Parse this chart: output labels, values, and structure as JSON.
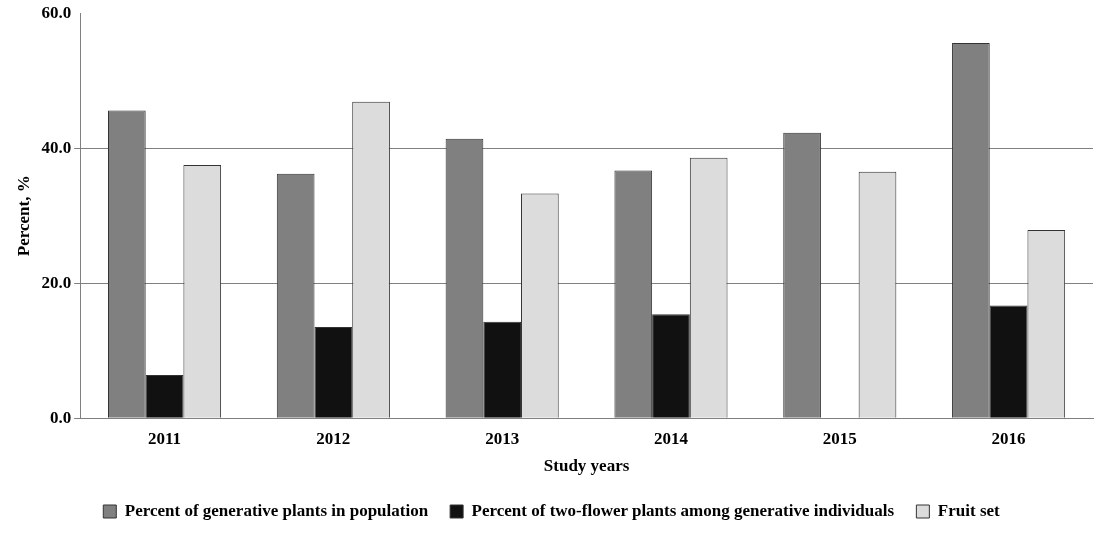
{
  "chart_data": {
    "type": "bar",
    "xlabel": "Study years",
    "ylabel": "Percent, %",
    "categories": [
      "2011",
      "2012",
      "2013",
      "2014",
      "2015",
      "2016"
    ],
    "series": [
      {
        "name": "Percent of generative plants in population",
        "color": "#808080",
        "values": [
          45.6,
          36.2,
          41.4,
          36.7,
          42.3,
          55.6
        ]
      },
      {
        "name": "Percent of two-flower plants among generative individuals",
        "color": "#111111",
        "values": [
          6.4,
          13.5,
          14.3,
          15.4,
          null,
          16.7
        ]
      },
      {
        "name": "Fruit set",
        "color": "#dcdcdc",
        "values": [
          37.5,
          46.9,
          33.3,
          38.6,
          36.5,
          27.9
        ]
      }
    ],
    "ylim": [
      0,
      60
    ],
    "yticks": [
      {
        "value": 0,
        "label": "0.0"
      },
      {
        "value": 20,
        "label": "20.0"
      },
      {
        "value": 40,
        "label": "40.0"
      },
      {
        "value": 60,
        "label": "60.0"
      }
    ],
    "grid": "y",
    "legend": "bottom"
  }
}
